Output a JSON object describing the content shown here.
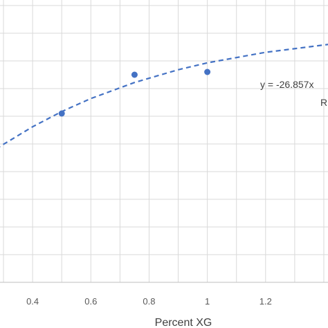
{
  "chart_data": {
    "type": "scatter",
    "xlabel": "Percent XG",
    "x_ticks": [
      "0.4",
      "0.6",
      "0.8",
      "1",
      "1.2"
    ],
    "xlim": [
      0.25,
      1.45
    ],
    "ylim": [
      0,
      10
    ],
    "grid": true,
    "points": [
      {
        "x": 0.5,
        "y": 6.1
      },
      {
        "x": 0.75,
        "y": 7.5
      },
      {
        "x": 1.0,
        "y": 7.6
      }
    ],
    "trendline": {
      "type": "polynomial",
      "style": "dashed",
      "x": [
        0.25,
        0.4,
        0.5,
        0.6,
        0.75,
        0.9,
        1.0,
        1.2,
        1.45
      ],
      "y": [
        4.67,
        5.62,
        6.17,
        6.64,
        7.22,
        7.68,
        7.93,
        8.31,
        8.64
      ]
    },
    "annotation_lines": [
      "y = -26.857x",
      "R"
    ],
    "colors": {
      "series": "#4472c4",
      "grid": "#d9d9d9",
      "tick_text": "#595959",
      "title_text": "#404040"
    }
  }
}
